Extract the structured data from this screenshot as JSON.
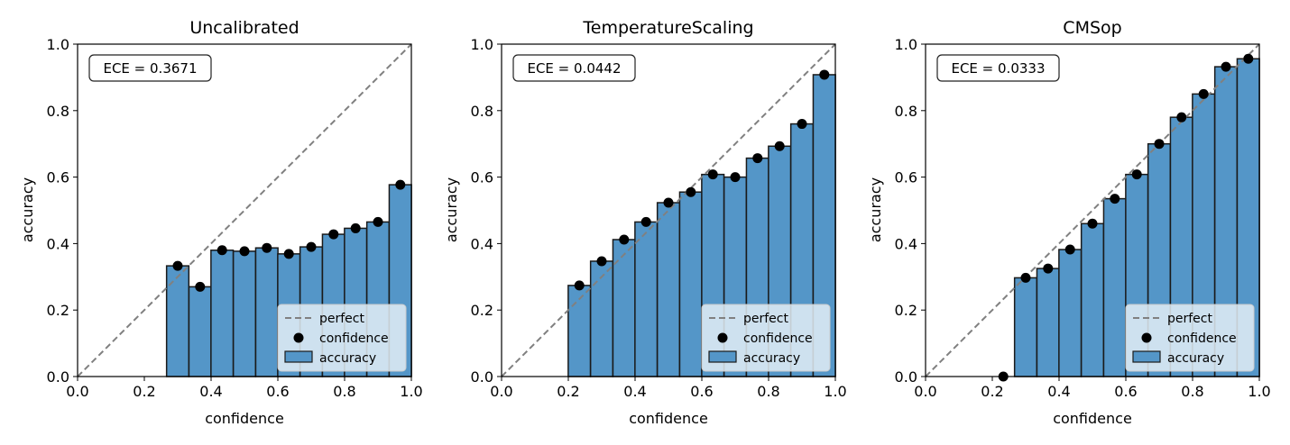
{
  "chart_data": [
    {
      "type": "bar",
      "title": "Uncalibrated",
      "xlabel": "confidence",
      "ylabel": "accuracy",
      "xlim": [
        0,
        1
      ],
      "ylim": [
        0,
        1
      ],
      "xticks": [
        "0.0",
        "0.2",
        "0.4",
        "0.6",
        "0.8",
        "1.0"
      ],
      "yticks": [
        "0.0",
        "0.2",
        "0.4",
        "0.6",
        "0.8",
        "1.0"
      ],
      "ece_label": "ECE = 0.3671",
      "bin_width": 0.0667,
      "bins": [
        {
          "center": 0.3,
          "accuracy": 0.333,
          "confidence": 0.333
        },
        {
          "center": 0.367,
          "accuracy": 0.27,
          "confidence": 0.27
        },
        {
          "center": 0.433,
          "accuracy": 0.38,
          "confidence": 0.38
        },
        {
          "center": 0.5,
          "accuracy": 0.377,
          "confidence": 0.377
        },
        {
          "center": 0.567,
          "accuracy": 0.387,
          "confidence": 0.387
        },
        {
          "center": 0.633,
          "accuracy": 0.369,
          "confidence": 0.369
        },
        {
          "center": 0.7,
          "accuracy": 0.39,
          "confidence": 0.39
        },
        {
          "center": 0.767,
          "accuracy": 0.428,
          "confidence": 0.428
        },
        {
          "center": 0.833,
          "accuracy": 0.446,
          "confidence": 0.446
        },
        {
          "center": 0.9,
          "accuracy": 0.465,
          "confidence": 0.465
        },
        {
          "center": 0.967,
          "accuracy": 0.577,
          "confidence": 0.577
        }
      ],
      "legend": [
        "perfect",
        "confidence",
        "accuracy"
      ],
      "legend_position": "lower-right"
    },
    {
      "type": "bar",
      "title": "TemperatureScaling",
      "xlabel": "confidence",
      "ylabel": "accuracy",
      "xlim": [
        0,
        1
      ],
      "ylim": [
        0,
        1
      ],
      "xticks": [
        "0.0",
        "0.2",
        "0.4",
        "0.6",
        "0.8",
        "1.0"
      ],
      "yticks": [
        "0.0",
        "0.2",
        "0.4",
        "0.6",
        "0.8",
        "1.0"
      ],
      "ece_label": "ECE = 0.0442",
      "bin_width": 0.0667,
      "bins": [
        {
          "center": 0.233,
          "accuracy": 0.274,
          "confidence": 0.274
        },
        {
          "center": 0.3,
          "accuracy": 0.347,
          "confidence": 0.347
        },
        {
          "center": 0.367,
          "accuracy": 0.412,
          "confidence": 0.412
        },
        {
          "center": 0.433,
          "accuracy": 0.465,
          "confidence": 0.465
        },
        {
          "center": 0.5,
          "accuracy": 0.523,
          "confidence": 0.523
        },
        {
          "center": 0.567,
          "accuracy": 0.555,
          "confidence": 0.555
        },
        {
          "center": 0.633,
          "accuracy": 0.608,
          "confidence": 0.608
        },
        {
          "center": 0.7,
          "accuracy": 0.6,
          "confidence": 0.6
        },
        {
          "center": 0.767,
          "accuracy": 0.657,
          "confidence": 0.657
        },
        {
          "center": 0.833,
          "accuracy": 0.693,
          "confidence": 0.693
        },
        {
          "center": 0.9,
          "accuracy": 0.76,
          "confidence": 0.76
        },
        {
          "center": 0.967,
          "accuracy": 0.908,
          "confidence": 0.908
        }
      ],
      "legend": [
        "perfect",
        "confidence",
        "accuracy"
      ],
      "legend_position": "lower-right"
    },
    {
      "type": "bar",
      "title": "CMSop",
      "xlabel": "confidence",
      "ylabel": "accuracy",
      "xlim": [
        0,
        1
      ],
      "ylim": [
        0,
        1
      ],
      "xticks": [
        "0.0",
        "0.2",
        "0.4",
        "0.6",
        "0.8",
        "1.0"
      ],
      "yticks": [
        "0.0",
        "0.2",
        "0.4",
        "0.6",
        "0.8",
        "1.0"
      ],
      "ece_label": "ECE = 0.0333",
      "bin_width": 0.0667,
      "bins": [
        {
          "center": 0.233,
          "accuracy": 0.0,
          "confidence": 0.0
        },
        {
          "center": 0.3,
          "accuracy": 0.297,
          "confidence": 0.297
        },
        {
          "center": 0.367,
          "accuracy": 0.325,
          "confidence": 0.325
        },
        {
          "center": 0.433,
          "accuracy": 0.382,
          "confidence": 0.382
        },
        {
          "center": 0.5,
          "accuracy": 0.46,
          "confidence": 0.46
        },
        {
          "center": 0.567,
          "accuracy": 0.535,
          "confidence": 0.535
        },
        {
          "center": 0.633,
          "accuracy": 0.608,
          "confidence": 0.608
        },
        {
          "center": 0.7,
          "accuracy": 0.7,
          "confidence": 0.7
        },
        {
          "center": 0.767,
          "accuracy": 0.78,
          "confidence": 0.78
        },
        {
          "center": 0.833,
          "accuracy": 0.85,
          "confidence": 0.85
        },
        {
          "center": 0.9,
          "accuracy": 0.932,
          "confidence": 0.932
        },
        {
          "center": 0.967,
          "accuracy": 0.956,
          "confidence": 0.956
        }
      ],
      "legend": [
        "perfect",
        "confidence",
        "accuracy"
      ],
      "legend_position": "lower-right"
    }
  ],
  "colors": {
    "bar_fill": "#5496c8",
    "bar_edge": "#1a1a1a",
    "perfect_line": "#808080",
    "dots": "#000000",
    "legend_bg": "#e4eef6"
  }
}
